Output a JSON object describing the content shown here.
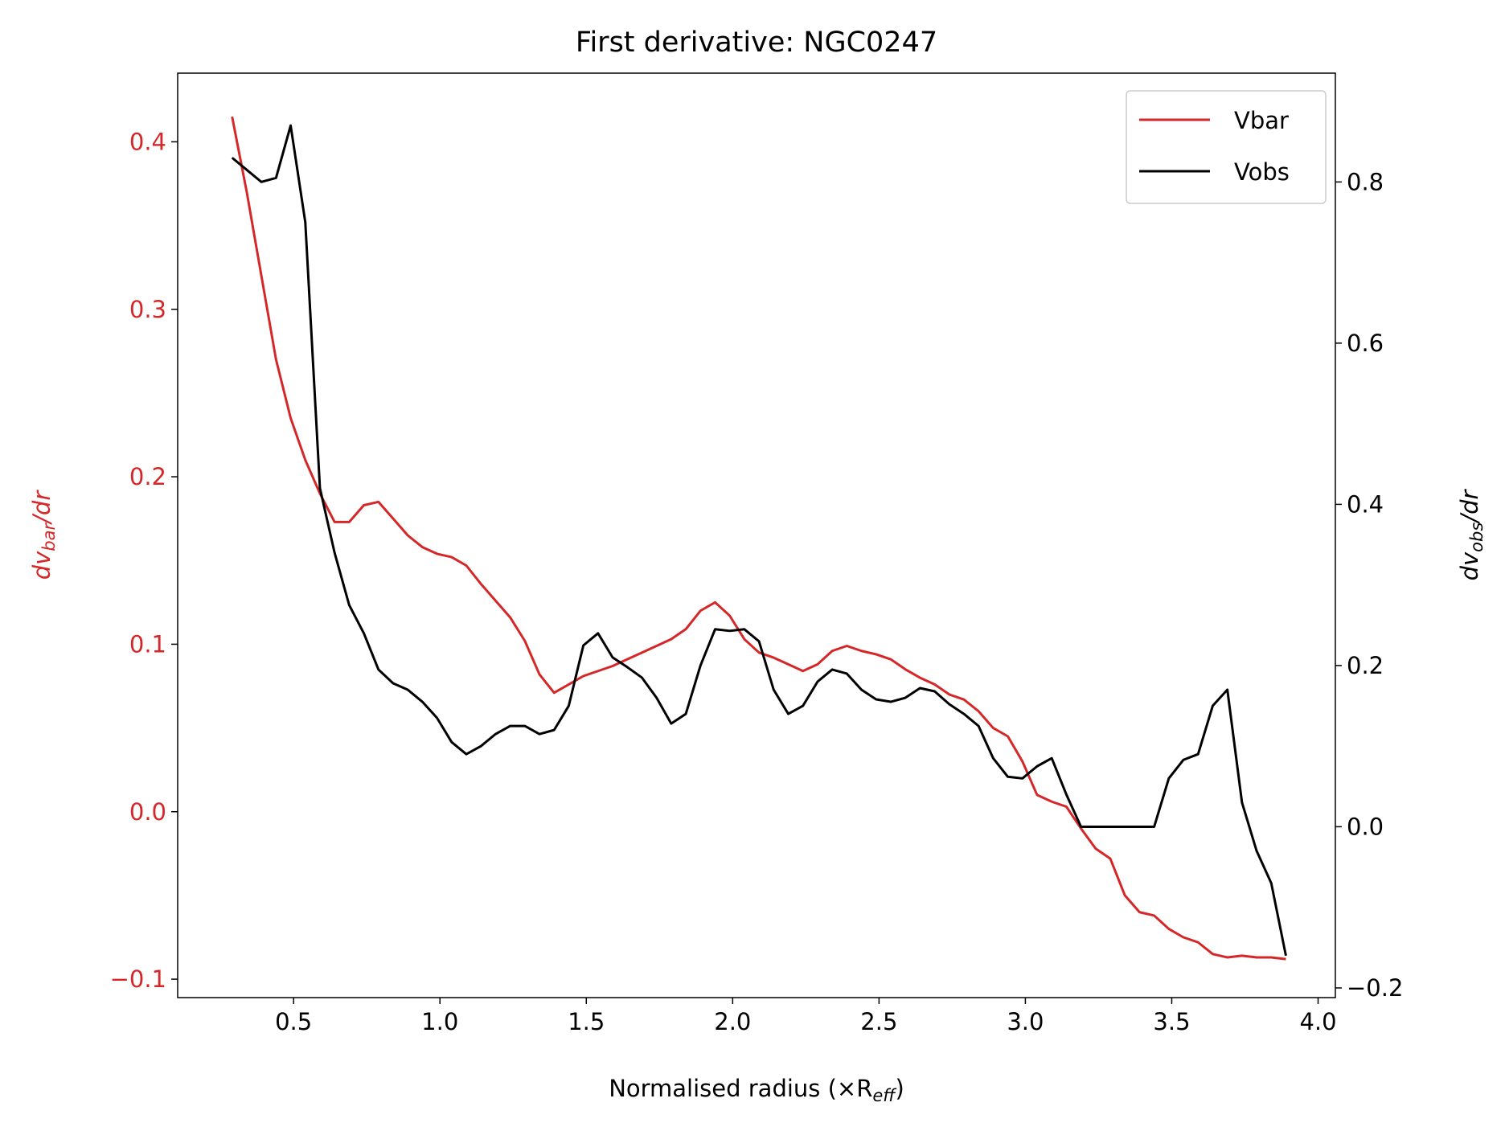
{
  "chart_data": {
    "type": "line",
    "title": "First derivative: NGC0247",
    "xlabel": {
      "text": "Normalised radius (×R",
      "sub": "eff",
      "tail": ")"
    },
    "ylabel": {
      "text": "dv",
      "sub": "bar",
      "tail": "/dr"
    },
    "y2label": {
      "text": "dv",
      "sub": "obs",
      "tail": "/dr"
    },
    "legend": "upper right",
    "xlim": [
      0.104,
      4.059
    ],
    "xticks": [
      0.5,
      {
        "value": 1,
        "label": "1.0"
      },
      1.5,
      {
        "value": 2,
        "label": "2.0"
      },
      2.5,
      {
        "value": 3,
        "label": "3.0"
      },
      3.5,
      {
        "value": 4,
        "label": "4.0"
      }
    ],
    "ylim": [
      -0.111,
      0.441
    ],
    "yticks": [
      {
        "value": -0.1,
        "label": "−0.1"
      },
      {
        "value": 0,
        "label": "0.0"
      },
      0.1,
      0.2,
      0.3,
      0.4
    ],
    "ytick_color": "#d62728",
    "y2lim": [
      -0.212,
      0.935
    ],
    "y2ticks": [
      {
        "value": -0.2,
        "label": "−0.2"
      },
      {
        "value": 0,
        "label": "0.0"
      },
      0.2,
      0.4,
      0.6,
      0.8
    ],
    "x": [
      0.29,
      0.34,
      0.39,
      0.44,
      0.49,
      0.54,
      0.59,
      0.64,
      0.69,
      0.74,
      0.79,
      0.84,
      0.89,
      0.94,
      0.99,
      1.04,
      1.09,
      1.14,
      1.19,
      1.24,
      1.29,
      1.34,
      1.39,
      1.44,
      1.49,
      1.54,
      1.59,
      1.64,
      1.69,
      1.74,
      1.79,
      1.84,
      1.89,
      1.94,
      1.99,
      2.04,
      2.09,
      2.14,
      2.19,
      2.24,
      2.29,
      2.34,
      2.39,
      2.44,
      2.49,
      2.54,
      2.59,
      2.64,
      2.69,
      2.74,
      2.79,
      2.84,
      2.89,
      2.94,
      2.99,
      3.04,
      3.09,
      3.14,
      3.19,
      3.24,
      3.29,
      3.34,
      3.39,
      3.44,
      3.49,
      3.54,
      3.59,
      3.64,
      3.69,
      3.74,
      3.79,
      3.84,
      3.89
    ],
    "series": [
      {
        "name": "Vbar",
        "color": "#d62728",
        "values": [
          0.415,
          0.37,
          0.32,
          0.27,
          0.235,
          0.21,
          0.19,
          0.173,
          0.173,
          0.183,
          0.185,
          0.175,
          0.165,
          0.158,
          0.154,
          0.152,
          0.147,
          0.136,
          0.126,
          0.116,
          0.102,
          0.082,
          0.071,
          0.076,
          0.081,
          0.084,
          0.087,
          0.091,
          0.095,
          0.099,
          0.103,
          0.109,
          0.12,
          0.125,
          0.117,
          0.103,
          0.095,
          0.092,
          0.088,
          0.084,
          0.088,
          0.096,
          0.099,
          0.096,
          0.094,
          0.091,
          0.085,
          0.08,
          0.076,
          0.07,
          0.067,
          0.06,
          0.05,
          0.045,
          0.03,
          0.01,
          0.006,
          0.003,
          -0.01,
          -0.022,
          -0.028,
          -0.05,
          -0.06,
          -0.062,
          -0.07,
          -0.075,
          -0.078,
          -0.085,
          -0.087,
          -0.086,
          -0.087,
          -0.087,
          -0.088
        ]
      },
      {
        "name": "Vobs",
        "color": "#000000",
        "axis": "y2",
        "values": [
          0.83,
          0.815,
          0.8,
          0.805,
          0.87,
          0.75,
          0.42,
          0.34,
          0.275,
          0.24,
          0.195,
          0.178,
          0.17,
          0.155,
          0.135,
          0.105,
          0.09,
          0.1,
          0.115,
          0.125,
          0.125,
          0.115,
          0.12,
          0.15,
          0.225,
          0.24,
          0.21,
          0.198,
          0.185,
          0.16,
          0.128,
          0.14,
          0.2,
          0.245,
          0.243,
          0.245,
          0.23,
          0.17,
          0.14,
          0.15,
          0.18,
          0.195,
          0.19,
          0.17,
          0.158,
          0.155,
          0.16,
          0.172,
          0.168,
          0.152,
          0.14,
          0.125,
          0.085,
          0.062,
          0.06,
          0.075,
          0.085,
          0.04,
          0,
          0,
          0,
          0,
          0,
          0,
          0.06,
          0.083,
          0.09,
          0.15,
          0.17,
          0.03,
          -0.03,
          -0.07,
          -0.16
        ]
      }
    ]
  }
}
